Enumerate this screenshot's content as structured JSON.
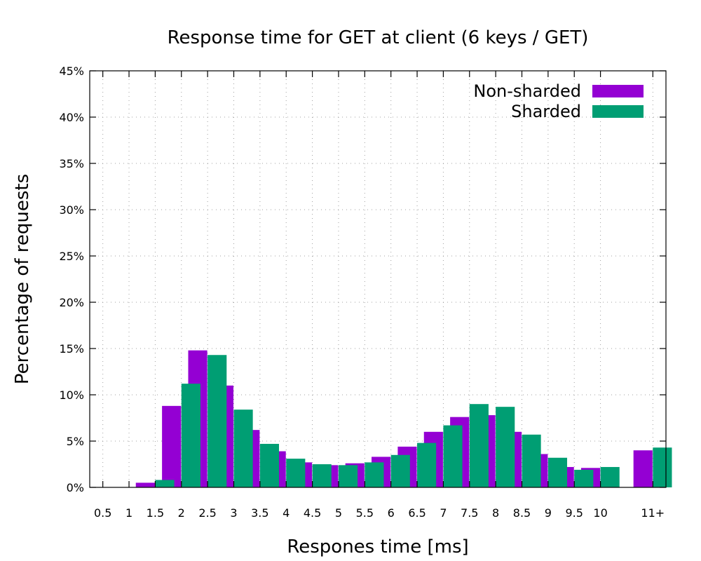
{
  "chart_data": {
    "type": "bar",
    "title": "Response time for GET at client (6 keys / GET)",
    "xlabel": "Respones time [ms]",
    "ylabel": "Percentage of requests",
    "categories": [
      "0.5",
      "1",
      "1.5",
      "2",
      "2.5",
      "3",
      "3.5",
      "4",
      "4.5",
      "5",
      "5.5",
      "6",
      "6.5",
      "7",
      "7.5",
      "8",
      "8.5",
      "9",
      "9.5",
      "10",
      "11+"
    ],
    "x_positions": [
      0.5,
      1,
      1.5,
      2,
      2.5,
      3,
      3.5,
      4,
      4.5,
      5,
      5.5,
      6,
      6.5,
      7,
      7.5,
      8,
      8.5,
      9,
      9.5,
      10,
      11
    ],
    "xlim": [
      0.25,
      11.25
    ],
    "ylim": [
      0,
      45
    ],
    "y_ticks": [
      0,
      5,
      10,
      15,
      20,
      25,
      30,
      35,
      40,
      45
    ],
    "y_tick_labels": [
      "0%",
      "5%",
      "10%",
      "15%",
      "20%",
      "25%",
      "30%",
      "35%",
      "40%",
      "45%"
    ],
    "grid": true,
    "legend_position": "top-right",
    "series": [
      {
        "name": "Non-sharded",
        "color": "#9400d3",
        "values": [
          0,
          0,
          0.5,
          8.8,
          14.8,
          11.0,
          6.2,
          3.9,
          2.7,
          2.4,
          2.6,
          3.3,
          4.4,
          6.0,
          7.6,
          7.8,
          6.0,
          3.6,
          2.2,
          2.1,
          4.0
        ]
      },
      {
        "name": "Sharded",
        "color": "#009e73",
        "values": [
          0,
          0,
          0.8,
          11.2,
          14.3,
          8.4,
          4.7,
          3.1,
          2.5,
          2.4,
          2.7,
          3.5,
          4.8,
          6.7,
          9.0,
          8.7,
          5.7,
          3.2,
          1.9,
          2.2,
          4.3
        ]
      }
    ]
  }
}
